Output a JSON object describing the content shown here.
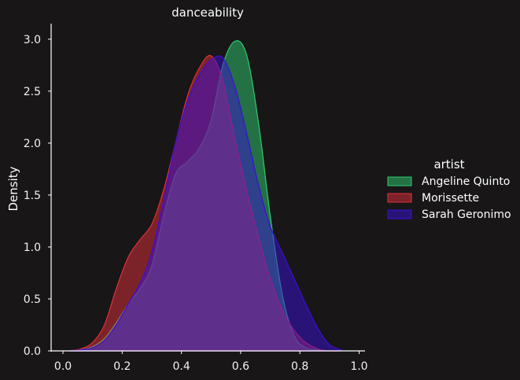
{
  "chart_data": {
    "type": "area",
    "title": "danceability",
    "xlabel": "",
    "ylabel": "Density",
    "xlim": [
      -0.04,
      1.02
    ],
    "ylim": [
      0,
      3.15
    ],
    "x_ticks": [
      "0.0",
      "0.2",
      "0.4",
      "0.6",
      "0.8",
      "1.0"
    ],
    "y_ticks": [
      "0.0",
      "0.5",
      "1.0",
      "1.5",
      "2.0",
      "2.5",
      "3.0"
    ],
    "grid": false,
    "legend": {
      "title": "artist",
      "position": "right"
    },
    "x": [
      0.02,
      0.06,
      0.1,
      0.14,
      0.18,
      0.22,
      0.26,
      0.3,
      0.34,
      0.38,
      0.42,
      0.46,
      0.5,
      0.54,
      0.58,
      0.62,
      0.66,
      0.7,
      0.74,
      0.78,
      0.82,
      0.86,
      0.9,
      0.94
    ],
    "series": [
      {
        "name": "Angeline Quinto",
        "color": "#2ecc71",
        "values": [
          0.0,
          0.01,
          0.04,
          0.12,
          0.27,
          0.45,
          0.6,
          0.82,
          1.3,
          1.7,
          1.82,
          1.95,
          2.22,
          2.75,
          2.98,
          2.85,
          2.2,
          1.3,
          0.55,
          0.15,
          0.03,
          0.01,
          0.0,
          0.0
        ]
      },
      {
        "name": "Morissette",
        "color": "#e0303c",
        "values": [
          0.0,
          0.02,
          0.08,
          0.25,
          0.6,
          0.9,
          1.07,
          1.22,
          1.55,
          2.0,
          2.45,
          2.72,
          2.84,
          2.6,
          2.05,
          1.55,
          1.1,
          0.7,
          0.4,
          0.2,
          0.08,
          0.02,
          0.0,
          0.0
        ]
      },
      {
        "name": "Sarah Geronimo",
        "color": "#3b0fd6",
        "values": [
          0.0,
          0.01,
          0.03,
          0.1,
          0.25,
          0.45,
          0.65,
          0.95,
          1.45,
          2.0,
          2.4,
          2.65,
          2.8,
          2.82,
          2.55,
          2.1,
          1.6,
          1.2,
          0.95,
          0.7,
          0.45,
          0.22,
          0.06,
          0.01
        ]
      }
    ]
  }
}
